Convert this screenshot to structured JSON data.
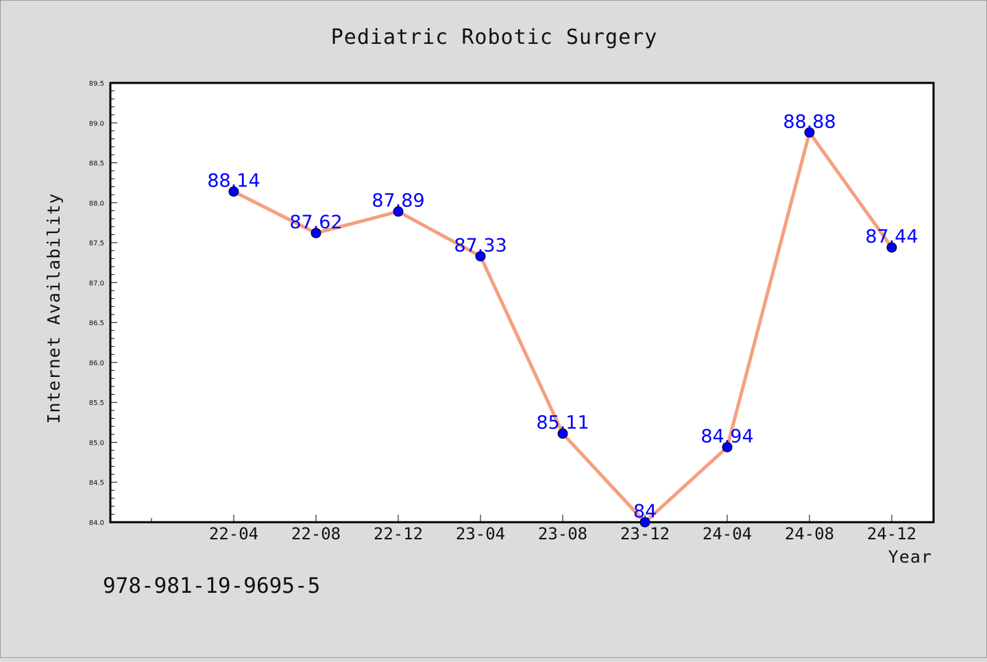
{
  "chart_data": {
    "type": "line",
    "title": "Pediatric Robotic Surgery",
    "xlabel": "Year",
    "ylabel": "Internet Availability",
    "categories": [
      "22-04",
      "22-08",
      "22-12",
      "23-04",
      "23-08",
      "23-12",
      "24-04",
      "24-08",
      "24-12"
    ],
    "series": [
      {
        "values": [
          88.14,
          87.62,
          87.89,
          87.33,
          85.11,
          84,
          84.94,
          88.88,
          87.44
        ],
        "data_labels": [
          "88.14",
          "87.62",
          "87.89",
          "87.33",
          "85.11",
          "84",
          "84.94",
          "88.88",
          "87.44"
        ]
      }
    ],
    "ylim": [
      84.0,
      89.5
    ],
    "y_ticks": [
      "84.0",
      "84.5",
      "85.0",
      "85.5",
      "86.0",
      "86.5",
      "87.0",
      "87.5",
      "88.0",
      "88.5",
      "89.0",
      "89.5"
    ],
    "grid": false,
    "legend": "none",
    "colors": {
      "line": "#f4a07f",
      "marker": "#0000ff",
      "data_label": "#0000ff",
      "background": "#dcdcdc",
      "plot_area": "#ffffff"
    }
  },
  "footer": {
    "identifier": "978-981-19-9695-5"
  }
}
